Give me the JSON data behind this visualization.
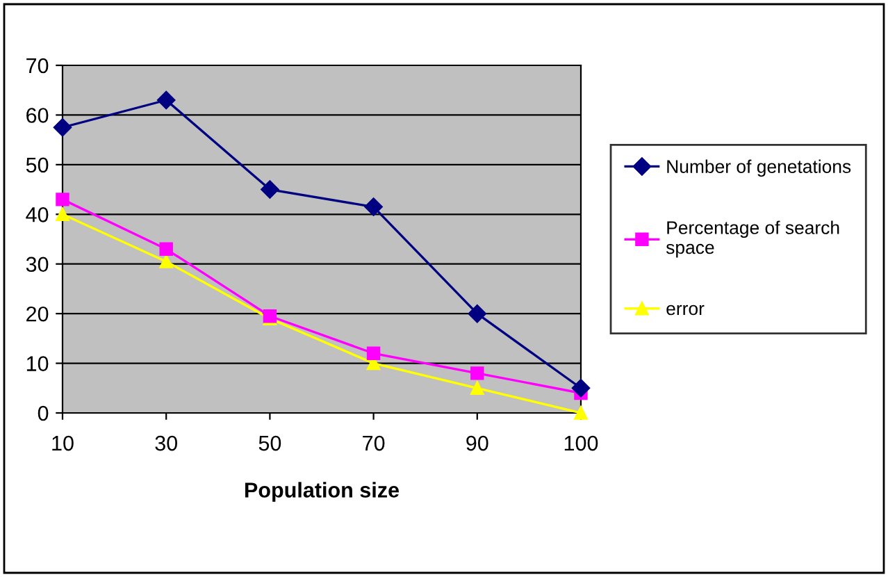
{
  "chart_data": {
    "type": "line",
    "xlabel": "Population size",
    "categories": [
      "10",
      "30",
      "50",
      "70",
      "90",
      "100"
    ],
    "series": [
      {
        "name": "Number of genetations",
        "color": "#000080",
        "marker": "diamond",
        "values": [
          57.5,
          63,
          45,
          41.5,
          20,
          5
        ]
      },
      {
        "name": "Percentage of search space",
        "color": "#ff00ff",
        "marker": "square",
        "values": [
          43,
          33,
          19.5,
          12,
          8,
          4
        ]
      },
      {
        "name": "error",
        "color": "#ffff00",
        "marker": "triangle",
        "values": [
          40,
          30.5,
          19,
          10,
          5,
          0
        ]
      }
    ],
    "ylim": [
      0,
      70
    ],
    "yticks": [
      0,
      10,
      20,
      30,
      40,
      50,
      60,
      70
    ],
    "grid": "y",
    "legend": "right",
    "line_style": "solid"
  }
}
